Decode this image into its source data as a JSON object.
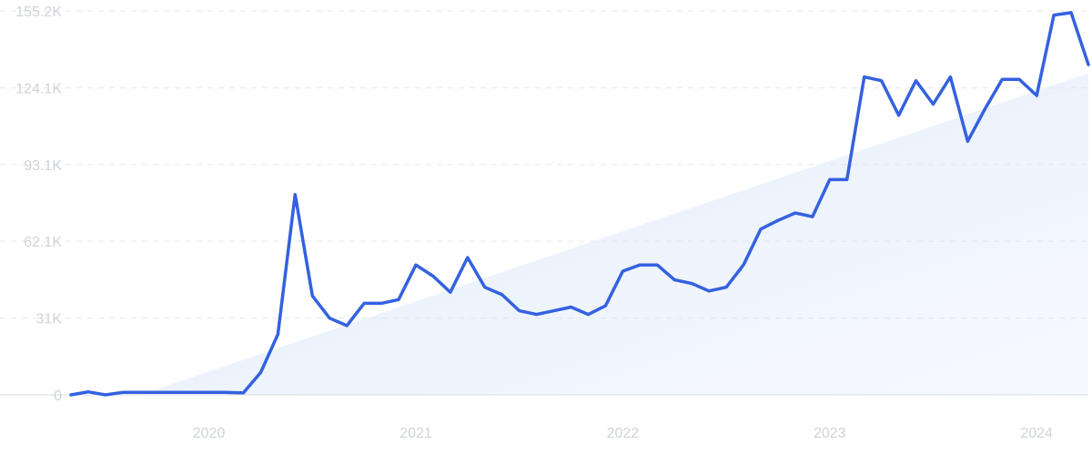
{
  "chart_data": {
    "type": "line",
    "title": "",
    "xlabel": "",
    "ylabel": "",
    "y_ticks": [
      "0",
      "31K",
      "62.1K",
      "93.1K",
      "124.1K",
      "155.2K"
    ],
    "y_tick_values": [
      0,
      31000,
      62100,
      93100,
      124100,
      155200
    ],
    "ylim": [
      0,
      155200
    ],
    "x_ticks": [
      "2020",
      "2021",
      "2022",
      "2023",
      "2024"
    ],
    "x_tick_values": [
      "2020-01",
      "2021-01",
      "2022-01",
      "2023-01",
      "2024-01"
    ],
    "xlim": [
      "2019-05",
      "2024-04"
    ],
    "grid": "horizontal dashed",
    "colors": {
      "line": "#3461e0",
      "trend_fill_top": "#dbe8fb",
      "trend_fill_bottom": "#f6f9fe",
      "grid": "#e4e7eb",
      "axis": "#d9dde2",
      "tick_text": "#cfd3d8"
    },
    "trend": {
      "start": {
        "x": "2019-09",
        "y": 0
      },
      "end": {
        "x": "2024-04",
        "y": 130000
      }
    },
    "series": [
      {
        "x": [
          "2019-05",
          "2019-06",
          "2019-07",
          "2019-08",
          "2019-09",
          "2019-10",
          "2019-11",
          "2019-12",
          "2020-01",
          "2020-02",
          "2020-03",
          "2020-04",
          "2020-05",
          "2020-06",
          "2020-07",
          "2020-08",
          "2020-09",
          "2020-10",
          "2020-11",
          "2020-12",
          "2021-01",
          "2021-02",
          "2021-03",
          "2021-04",
          "2021-05",
          "2021-06",
          "2021-07",
          "2021-08",
          "2021-09",
          "2021-10",
          "2021-11",
          "2021-12",
          "2022-01",
          "2022-02",
          "2022-03",
          "2022-04",
          "2022-05",
          "2022-06",
          "2022-07",
          "2022-08",
          "2022-09",
          "2022-10",
          "2022-11",
          "2022-12",
          "2023-01",
          "2023-02",
          "2023-03",
          "2023-04",
          "2023-05",
          "2023-06",
          "2023-07",
          "2023-08",
          "2023-09",
          "2023-10",
          "2023-11",
          "2023-12",
          "2024-01",
          "2024-02",
          "2024-03",
          "2024-04"
        ],
        "values": [
          0,
          1200,
          0,
          1000,
          1000,
          1000,
          1000,
          1000,
          1000,
          1000,
          800,
          9000,
          24500,
          81000,
          40000,
          31000,
          28000,
          37000,
          37000,
          38500,
          52500,
          48000,
          41500,
          55500,
          43500,
          40500,
          34000,
          32500,
          34000,
          35500,
          32500,
          36000,
          50000,
          52500,
          52500,
          46500,
          45000,
          42000,
          43500,
          52500,
          67000,
          70500,
          73500,
          72000,
          87000,
          87000,
          128500,
          127000,
          113000,
          127000,
          117500,
          128500,
          102500,
          115500,
          127500,
          127500,
          121000,
          153500,
          154500,
          133500
        ]
      }
    ]
  }
}
